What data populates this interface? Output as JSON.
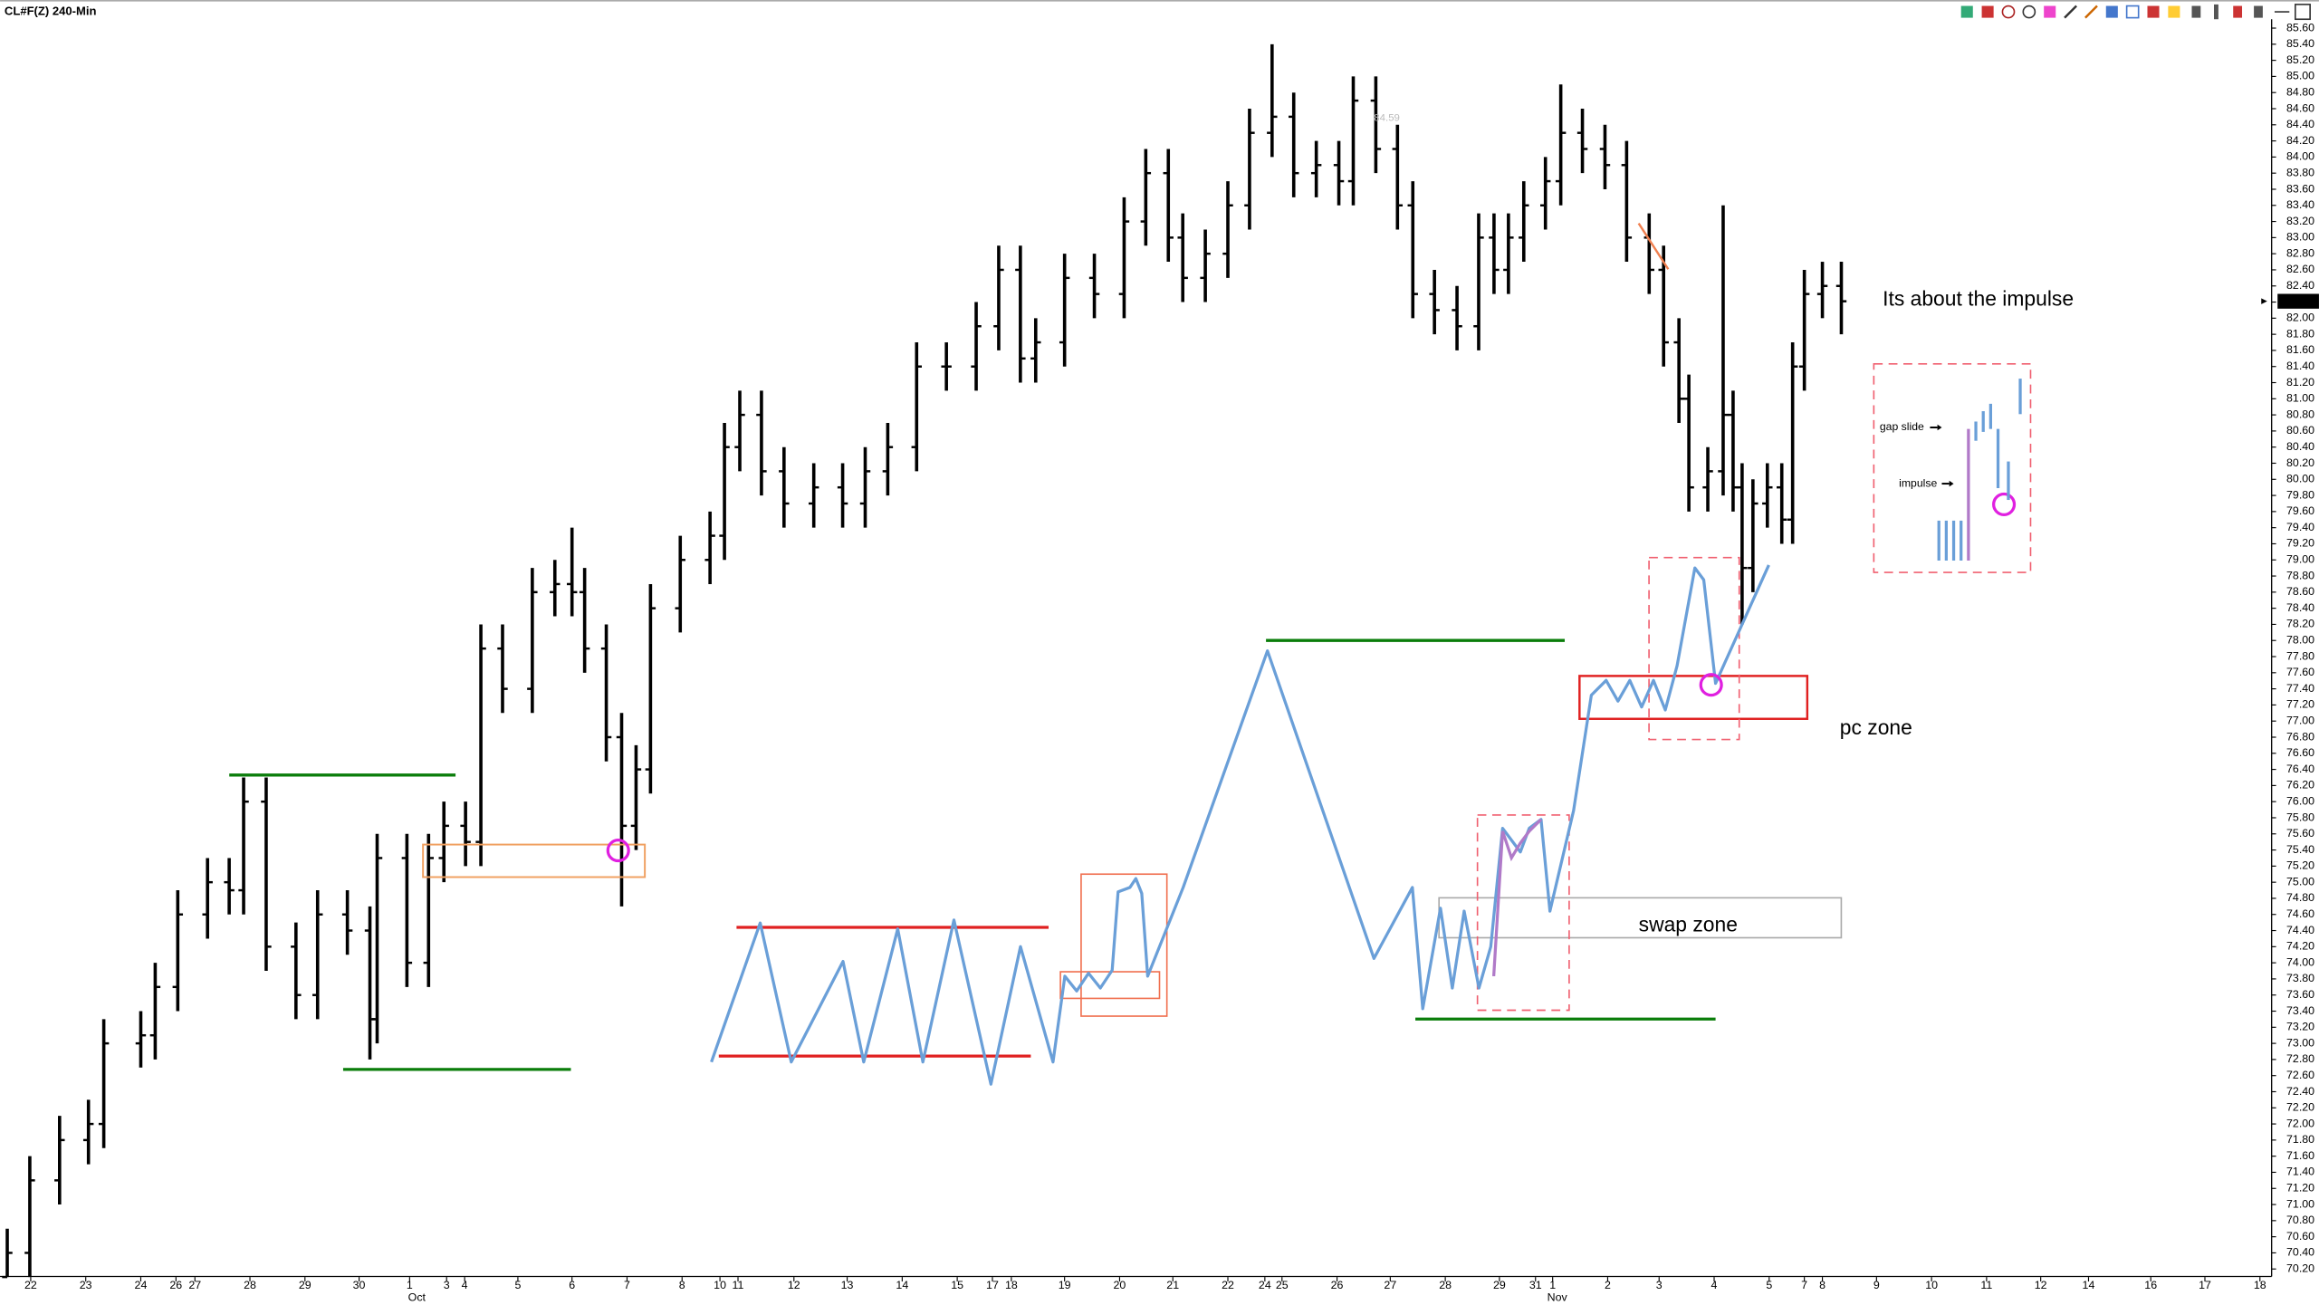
{
  "chart_data": {
    "type": "ohlc",
    "title": "CL#F(Z) 240-Min",
    "color": "#000000",
    "xlim": [
      0,
      251.6
    ],
    "ylim": [
      70.1,
      85.7
    ],
    "x": [
      0.8,
      3.3,
      6.6,
      9.8,
      11.5,
      15.6,
      17.2,
      19.7,
      23,
      25.4,
      27,
      29.5,
      32.8,
      35.2,
      38.5,
      41,
      41.8,
      45.1,
      47.5,
      49.2,
      51.6,
      53.3,
      55.7,
      59,
      61.5,
      63.4,
      64.8,
      67.2,
      68.9,
      70.5,
      72.1,
      75.4,
      78.7,
      80.3,
      82,
      84.4,
      86.9,
      90.2,
      93.4,
      95.9,
      98.4,
      101.6,
      104.9,
      108.2,
      110.7,
      113.1,
      114.8,
      118,
      121.3,
      124.6,
      127,
      129.5,
      131.1,
      133.6,
      136.1,
      138.5,
      141,
      143.4,
      145.9,
      148.4,
      150,
      152.5,
      154.9,
      156.6,
      159,
      161.5,
      163.9,
      165.6,
      167.2,
      168.9,
      171.3,
      173,
      175.4,
      177.9,
      180.3,
      182.8,
      184.4,
      186.1,
      187.2,
      189.3,
      191,
      192.1,
      193.1,
      194.3,
      195.9,
      197.5,
      198.7,
      200,
      202,
      204.1
    ],
    "open": [
      70.1,
      70.4,
      71.3,
      71.8,
      72.0,
      73.0,
      73.1,
      73.7,
      74.6,
      75.0,
      74.9,
      76.0,
      74.2,
      73.6,
      74.6,
      74.4,
      73.3,
      75.3,
      74.0,
      75.3,
      75.7,
      75.5,
      77.9,
      77.4,
      78.6,
      78.7,
      78.6,
      77.9,
      76.8,
      75.7,
      76.4,
      78.4,
      79.0,
      79.3,
      80.4,
      80.8,
      80.1,
      79.7,
      79.9,
      79.7,
      80.1,
      80.4,
      81.4,
      81.4,
      81.9,
      82.6,
      81.5,
      81.7,
      82.5,
      82.3,
      83.2,
      83.8,
      83.0,
      82.5,
      82.8,
      83.4,
      84.3,
      84.5,
      83.8,
      83.9,
      83.7,
      84.7,
      84.1,
      83.4,
      82.3,
      82.1,
      81.9,
      83.0,
      82.6,
      83.0,
      83.4,
      83.7,
      84.3,
      84.1,
      83.9,
      83.0,
      82.6,
      81.7,
      81.0,
      79.9,
      80.1,
      80.8,
      79.9,
      78.9,
      79.7,
      79.9,
      79.5,
      81.4,
      82.3,
      82.4
    ],
    "high": [
      70.7,
      71.6,
      72.1,
      72.3,
      73.3,
      73.4,
      74.0,
      74.9,
      75.3,
      75.3,
      76.3,
      76.3,
      74.5,
      74.9,
      74.9,
      74.7,
      75.6,
      75.6,
      75.6,
      76.0,
      76.0,
      78.2,
      78.2,
      78.9,
      79.0,
      79.4,
      78.9,
      78.2,
      77.1,
      76.7,
      78.7,
      79.3,
      79.6,
      80.7,
      81.1,
      81.1,
      80.4,
      80.2,
      80.2,
      80.4,
      80.7,
      81.7,
      81.7,
      82.2,
      82.9,
      82.9,
      82.0,
      82.8,
      82.8,
      83.5,
      84.1,
      84.1,
      83.3,
      83.1,
      83.7,
      84.6,
      85.4,
      84.8,
      84.2,
      84.2,
      85.0,
      85.0,
      84.4,
      83.7,
      82.6,
      82.4,
      83.3,
      83.3,
      83.3,
      83.7,
      84.0,
      84.9,
      84.6,
      84.4,
      84.2,
      83.3,
      82.9,
      82.0,
      81.3,
      80.4,
      83.4,
      81.1,
      80.2,
      80.0,
      80.2,
      80.2,
      81.7,
      82.6,
      82.7,
      82.7
    ],
    "low": [
      70.1,
      70.1,
      71.0,
      71.5,
      71.7,
      72.7,
      72.8,
      73.4,
      74.3,
      74.6,
      74.6,
      73.9,
      73.3,
      73.3,
      74.1,
      72.8,
      73.0,
      73.7,
      73.7,
      75.0,
      75.2,
      75.2,
      77.1,
      77.1,
      78.3,
      78.3,
      77.6,
      76.5,
      74.7,
      75.4,
      76.1,
      78.1,
      78.7,
      79.0,
      80.1,
      79.8,
      79.4,
      79.4,
      79.4,
      79.4,
      79.8,
      80.1,
      81.1,
      81.1,
      81.6,
      81.2,
      81.2,
      81.4,
      82.0,
      82.0,
      82.9,
      82.7,
      82.2,
      82.2,
      82.5,
      83.1,
      84.0,
      83.5,
      83.5,
      83.4,
      83.4,
      83.8,
      83.1,
      82.0,
      81.8,
      81.6,
      81.6,
      82.3,
      82.3,
      82.7,
      83.1,
      83.4,
      83.8,
      83.6,
      82.7,
      82.3,
      81.4,
      80.7,
      79.6,
      79.6,
      79.8,
      79.6,
      78.2,
      78.6,
      79.4,
      79.2,
      79.2,
      81.1,
      82.0,
      81.8
    ],
    "close": [
      70.4,
      71.3,
      71.8,
      72.0,
      73.0,
      73.1,
      73.7,
      74.6,
      75.0,
      74.9,
      76.0,
      74.2,
      73.6,
      74.6,
      74.4,
      73.3,
      75.3,
      74.0,
      75.3,
      75.7,
      75.5,
      77.9,
      77.4,
      78.6,
      78.7,
      78.6,
      77.9,
      76.8,
      75.7,
      76.4,
      78.4,
      79.0,
      79.3,
      80.4,
      80.8,
      80.1,
      79.7,
      79.9,
      79.7,
      80.1,
      80.4,
      81.4,
      81.4,
      81.9,
      82.6,
      81.5,
      81.7,
      82.5,
      82.3,
      83.2,
      83.8,
      83.0,
      82.5,
      82.8,
      83.4,
      84.3,
      84.5,
      83.8,
      83.9,
      83.7,
      84.7,
      84.1,
      83.4,
      82.3,
      82.1,
      81.9,
      83.0,
      82.6,
      83.0,
      83.4,
      83.7,
      84.3,
      84.1,
      83.9,
      83.0,
      82.6,
      81.7,
      81.0,
      79.9,
      80.1,
      80.8,
      79.9,
      78.9,
      79.7,
      79.9,
      79.5,
      81.4,
      82.3,
      82.4,
      82.21
    ],
    "last_price": 82.21,
    "price_note": 84.59,
    "xticks": [
      {
        "value": 3.4,
        "label": "22"
      },
      {
        "value": 9.5,
        "label": "23"
      },
      {
        "value": 15.6,
        "label": "24"
      },
      {
        "value": 19.5,
        "label": "26"
      },
      {
        "value": 21.6,
        "label": "27"
      },
      {
        "value": 27.7,
        "label": "28"
      },
      {
        "value": 33.8,
        "label": "29"
      },
      {
        "value": 39.8,
        "label": "30"
      },
      {
        "value": 45.4,
        "label": "1"
      },
      {
        "value": 49.5,
        "label": "3"
      },
      {
        "value": 51.5,
        "label": "4"
      },
      {
        "value": 57.4,
        "label": "5"
      },
      {
        "value": 63.4,
        "label": "6"
      },
      {
        "value": 69.5,
        "label": "7"
      },
      {
        "value": 75.6,
        "label": "8"
      },
      {
        "value": 79.8,
        "label": "10"
      },
      {
        "value": 81.8,
        "label": "11"
      },
      {
        "value": 88.0,
        "label": "12"
      },
      {
        "value": 93.9,
        "label": "13"
      },
      {
        "value": 100,
        "label": "14"
      },
      {
        "value": 106.1,
        "label": "15"
      },
      {
        "value": 110,
        "label": "17"
      },
      {
        "value": 112.1,
        "label": "18"
      },
      {
        "value": 118,
        "label": "19"
      },
      {
        "value": 124.1,
        "label": "20"
      },
      {
        "value": 130,
        "label": "21"
      },
      {
        "value": 136.1,
        "label": "22"
      },
      {
        "value": 140.2,
        "label": "24"
      },
      {
        "value": 142.1,
        "label": "25"
      },
      {
        "value": 148.2,
        "label": "26"
      },
      {
        "value": 154.1,
        "label": "27"
      },
      {
        "value": 160.2,
        "label": "28"
      },
      {
        "value": 166.2,
        "label": "29"
      },
      {
        "value": 170.2,
        "label": "31"
      },
      {
        "value": 172.1,
        "label": "1"
      },
      {
        "value": 178.2,
        "label": "2"
      },
      {
        "value": 183.9,
        "label": "3"
      },
      {
        "value": 190,
        "label": "4"
      },
      {
        "value": 196.1,
        "label": "5"
      },
      {
        "value": 200,
        "label": "7"
      },
      {
        "value": 202,
        "label": "8"
      },
      {
        "value": 208,
        "label": "9"
      },
      {
        "value": 214.1,
        "label": "10"
      },
      {
        "value": 220.2,
        "label": "11"
      },
      {
        "value": 226.2,
        "label": "12"
      },
      {
        "value": 231.5,
        "label": "14"
      },
      {
        "value": 238.4,
        "label": "16"
      },
      {
        "value": 244.4,
        "label": "17"
      },
      {
        "value": 250.5,
        "label": "18"
      }
    ],
    "xmonths": [
      {
        "value": 46.2,
        "label": "Oct"
      },
      {
        "value": 172.6,
        "label": "Nov"
      }
    ],
    "yticks": [
      {
        "value": 85.6,
        "label": "85.60"
      },
      {
        "value": 85.4,
        "label": "85.40"
      },
      {
        "value": 85.2,
        "label": "85.20"
      },
      {
        "value": 85,
        "label": "85.00"
      },
      {
        "value": 84.8,
        "label": "84.80"
      },
      {
        "value": 84.6,
        "label": "84.60"
      },
      {
        "value": 84.4,
        "label": "84.40"
      },
      {
        "value": 84.2,
        "label": "84.20"
      },
      {
        "value": 84,
        "label": "84.00"
      },
      {
        "value": 83.8,
        "label": "83.80"
      },
      {
        "value": 83.6,
        "label": "83.60"
      },
      {
        "value": 83.4,
        "label": "83.40"
      },
      {
        "value": 83.2,
        "label": "83.20"
      },
      {
        "value": 83,
        "label": "83.00"
      },
      {
        "value": 82.8,
        "label": "82.80"
      },
      {
        "value": 82.6,
        "label": "82.60"
      },
      {
        "value": 82.4,
        "label": "82.40"
      },
      {
        "value": 82.2,
        "label": "82.20"
      },
      {
        "value": 82,
        "label": "82.00"
      },
      {
        "value": 81.8,
        "label": "81.80"
      },
      {
        "value": 81.6,
        "label": "81.60"
      },
      {
        "value": 81.4,
        "label": "81.40"
      },
      {
        "value": 81.2,
        "label": "81.20"
      },
      {
        "value": 81,
        "label": "81.00"
      },
      {
        "value": 80.8,
        "label": "80.80"
      },
      {
        "value": 80.6,
        "label": "80.60"
      },
      {
        "value": 80.4,
        "label": "80.40"
      },
      {
        "value": 80.2,
        "label": "80.20"
      },
      {
        "value": 80,
        "label": "80.00"
      },
      {
        "value": 79.8,
        "label": "79.80"
      },
      {
        "value": 79.6,
        "label": "79.60"
      },
      {
        "value": 79.4,
        "label": "79.40"
      },
      {
        "value": 79.2,
        "label": "79.20"
      },
      {
        "value": 79,
        "label": "79.00"
      },
      {
        "value": 78.8,
        "label": "78.80"
      },
      {
        "value": 78.6,
        "label": "78.60"
      },
      {
        "value": 78.4,
        "label": "78.40"
      },
      {
        "value": 78.2,
        "label": "78.20"
      },
      {
        "value": 78,
        "label": "78.00"
      },
      {
        "value": 77.8,
        "label": "77.80"
      },
      {
        "value": 77.6,
        "label": "77.60"
      },
      {
        "value": 77.4,
        "label": "77.40"
      },
      {
        "value": 77.2,
        "label": "77.20"
      },
      {
        "value": 77,
        "label": "77.00"
      },
      {
        "value": 76.8,
        "label": "76.80"
      },
      {
        "value": 76.6,
        "label": "76.60"
      },
      {
        "value": 76.4,
        "label": "76.40"
      },
      {
        "value": 76.2,
        "label": "76.20"
      },
      {
        "value": 76,
        "label": "76.00"
      },
      {
        "value": 75.8,
        "label": "75.80"
      },
      {
        "value": 75.6,
        "label": "75.60"
      },
      {
        "value": 75.4,
        "label": "75.40"
      },
      {
        "value": 75.2,
        "label": "75.20"
      },
      {
        "value": 75,
        "label": "75.00"
      },
      {
        "value": 74.8,
        "label": "74.80"
      },
      {
        "value": 74.6,
        "label": "74.60"
      },
      {
        "value": 74.4,
        "label": "74.40"
      },
      {
        "value": 74.2,
        "label": "74.20"
      },
      {
        "value": 74,
        "label": "74.00"
      },
      {
        "value": 73.8,
        "label": "73.80"
      },
      {
        "value": 73.6,
        "label": "73.60"
      },
      {
        "value": 73.4,
        "label": "73.40"
      },
      {
        "value": 73.2,
        "label": "73.20"
      },
      {
        "value": 73,
        "label": "73.00"
      },
      {
        "value": 72.8,
        "label": "72.80"
      },
      {
        "value": 72.6,
        "label": "72.60"
      },
      {
        "value": 72.4,
        "label": "72.40"
      },
      {
        "value": 72.2,
        "label": "72.20"
      },
      {
        "value": 72,
        "label": "72.00"
      },
      {
        "value": 71.8,
        "label": "71.80"
      },
      {
        "value": 71.6,
        "label": "71.60"
      },
      {
        "value": 71.4,
        "label": "71.40"
      },
      {
        "value": 71.2,
        "label": "71.20"
      },
      {
        "value": 71,
        "label": "71.00"
      },
      {
        "value": 70.8,
        "label": "70.80"
      },
      {
        "value": 70.6,
        "label": "70.60"
      },
      {
        "value": 70.4,
        "label": "70.40"
      },
      {
        "value": 70.2,
        "label": "70.20"
      }
    ],
    "annotations": {
      "headline": "Its about the impulse",
      "pc_zone": "pc zone",
      "swap_zone": "swap zone",
      "gap_slide": "gap slide",
      "impulse": "impulse"
    }
  }
}
